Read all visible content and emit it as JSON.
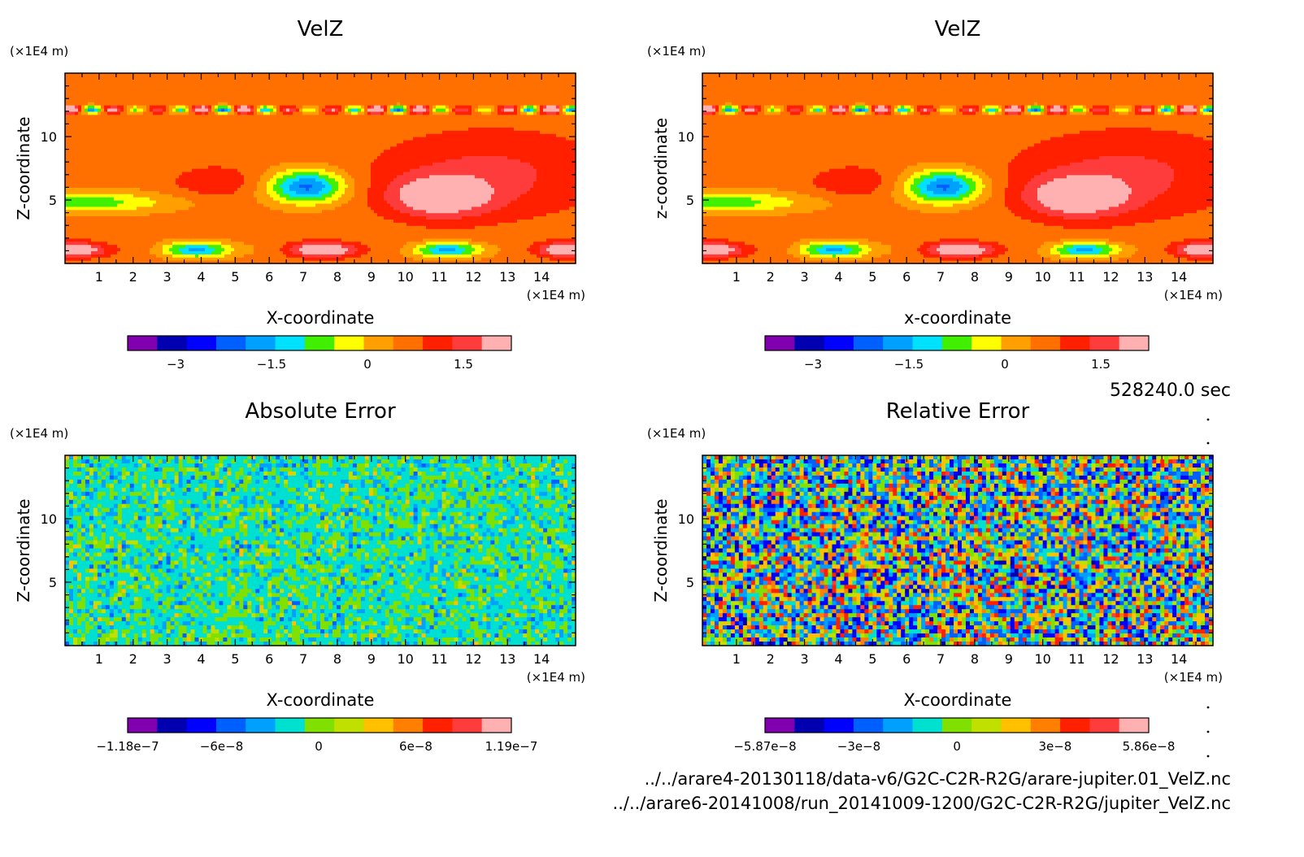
{
  "timestamp": "528240.0 sec",
  "files": [
    "../../arare4-20130118/data-v6/G2C-C2R-R2G/arare-jupiter.01_VelZ.nc",
    "../../arare6-20141008/run_20141009-1200/G2C-C2R-R2G/jupiter_VelZ.nc"
  ],
  "chart_data": [
    {
      "type": "heatmap",
      "title": "VelZ",
      "xlabel": "X-coordinate",
      "ylabel": "Z-coordinate",
      "x_unit": "(×1E4 m)",
      "y_unit": "(×1E4 m)",
      "xlim": [
        0,
        15
      ],
      "ylim": [
        0,
        15
      ],
      "x_ticks": [
        "1",
        "2",
        "3",
        "4",
        "5",
        "6",
        "7",
        "8",
        "9",
        "10",
        "11",
        "12",
        "13",
        "14"
      ],
      "y_ticks": [
        "5",
        "10"
      ],
      "field": "smooth",
      "colorbar": {
        "range": [
          -3.75,
          2.25
        ],
        "tick_labels": [
          "−3",
          "−1.5",
          "0",
          "1.5"
        ],
        "tick_values": [
          -3,
          -1.5,
          0,
          1.5
        ],
        "colors": [
          "#8000b0",
          "#0000b0",
          "#0000ff",
          "#0060ff",
          "#00a0ff",
          "#00e0ff",
          "#40f000",
          "#ffff00",
          "#ffa000",
          "#ff7000",
          "#ff2000",
          "#ff3c3c",
          "#ffb0b0"
        ]
      }
    },
    {
      "type": "heatmap",
      "title": "VelZ",
      "xlabel": "x-coordinate",
      "ylabel": "z-coordinate",
      "x_unit": "(×1E4 m)",
      "y_unit": "(×1E4 m)",
      "xlim": [
        0,
        15
      ],
      "ylim": [
        0,
        15
      ],
      "x_ticks": [
        "1",
        "2",
        "3",
        "4",
        "5",
        "6",
        "7",
        "8",
        "9",
        "10",
        "11",
        "12",
        "13",
        "14"
      ],
      "y_ticks": [
        "5",
        "10"
      ],
      "field": "smooth",
      "colorbar": {
        "range": [
          -3.75,
          2.25
        ],
        "tick_labels": [
          "−3",
          "−1.5",
          "0",
          "1.5"
        ],
        "tick_values": [
          -3,
          -1.5,
          0,
          1.5
        ],
        "colors": [
          "#8000b0",
          "#0000b0",
          "#0000ff",
          "#0060ff",
          "#00a0ff",
          "#00e0ff",
          "#40f000",
          "#ffff00",
          "#ffa000",
          "#ff7000",
          "#ff2000",
          "#ff3c3c",
          "#ffb0b0"
        ]
      }
    },
    {
      "type": "heatmap",
      "title": "Absolute Error",
      "xlabel": "X-coordinate",
      "ylabel": "Z-coordinate",
      "x_unit": "(×1E4 m)",
      "y_unit": "(×1E4 m)",
      "xlim": [
        0,
        15
      ],
      "ylim": [
        0,
        15
      ],
      "x_ticks": [
        "1",
        "2",
        "3",
        "4",
        "5",
        "6",
        "7",
        "8",
        "9",
        "10",
        "11",
        "12",
        "13",
        "14"
      ],
      "y_ticks": [
        "5",
        "10"
      ],
      "field": "noise-low",
      "colorbar": {
        "range": [
          -1.18e-07,
          1.19e-07
        ],
        "tick_labels": [
          "−1.18e−7",
          "−6e−8",
          "0",
          "6e−8",
          "1.19e−7"
        ],
        "tick_values": [
          -1.18e-07,
          -6e-08,
          0,
          6e-08,
          1.19e-07
        ],
        "colors": [
          "#8000b0",
          "#0000b0",
          "#0000ff",
          "#0060ff",
          "#00a0ff",
          "#00e0d0",
          "#80e000",
          "#c0e000",
          "#ffc000",
          "#ff8000",
          "#ff2000",
          "#ff3c3c",
          "#ffb0b0"
        ]
      }
    },
    {
      "type": "heatmap",
      "title": "Relative Error",
      "xlabel": "X-coordinate",
      "ylabel": "Z-coordinate",
      "x_unit": "(×1E4 m)",
      "y_unit": "(×1E4 m)",
      "xlim": [
        0,
        15
      ],
      "ylim": [
        0,
        15
      ],
      "x_ticks": [
        "1",
        "2",
        "3",
        "4",
        "5",
        "6",
        "7",
        "8",
        "9",
        "10",
        "11",
        "12",
        "13",
        "14"
      ],
      "y_ticks": [
        "5",
        "10"
      ],
      "field": "noise-high",
      "colorbar": {
        "range": [
          -5.87e-08,
          5.86e-08
        ],
        "tick_labels": [
          "−5.87e−8",
          "−3e−8",
          "0",
          "3e−8",
          "5.86e−8"
        ],
        "tick_values": [
          -5.87e-08,
          -3e-08,
          0,
          3e-08,
          5.86e-08
        ],
        "colors": [
          "#8000b0",
          "#0000b0",
          "#0000ff",
          "#0060ff",
          "#00a0ff",
          "#00e0d0",
          "#80e000",
          "#c0e000",
          "#ffc000",
          "#ff8000",
          "#ff2000",
          "#ff3c3c",
          "#ffb0b0"
        ]
      }
    }
  ]
}
